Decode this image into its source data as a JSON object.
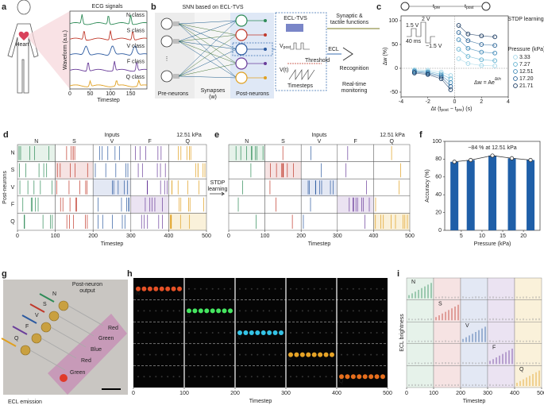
{
  "panels": {
    "a": {
      "label": "a",
      "title": "ECG signals",
      "organ": "Heart",
      "classes": [
        "N class",
        "S class",
        "V class",
        "F class",
        "Q class"
      ],
      "colors": [
        "#2e8b57",
        "#c0392b",
        "#2c5aa0",
        "#6a3d9a",
        "#e0a020"
      ],
      "ylabel": "Waveform (a.u.)",
      "xlabel": "Timestep",
      "xticks": [
        0,
        50,
        100,
        150
      ],
      "xlim": [
        0,
        190
      ]
    },
    "b": {
      "label": "b",
      "title": "SNN based on ECL-TVS",
      "pre": "Pre-neurons",
      "synapses": [
        "Synapses",
        "(w)"
      ],
      "post": "Post-neurons",
      "device": "ECL-TVS",
      "vpost": "V",
      "vpost_sub": "post",
      "vt": "V(t)",
      "threshold": "Threshold",
      "timesteps": "Timesteps",
      "ecl": "ECL",
      "recognition": "Recognition",
      "monitoring": [
        "Real-time",
        "monitoring"
      ],
      "functions": [
        "Synaptic &",
        "tactile functions"
      ]
    },
    "d": {
      "label": "d",
      "title": "Inputs",
      "pressure": "12.51 kPa",
      "columns": [
        "N",
        "S",
        "V",
        "F",
        "Q"
      ],
      "rows": [
        "N",
        "S",
        "V",
        "F",
        "Q"
      ],
      "ylabel": "Post-neurons",
      "xlabel": "Timestep",
      "xticks": [
        0,
        100,
        200,
        300,
        400,
        500
      ],
      "xlim": [
        0,
        500
      ]
    },
    "arrow": [
      "STDP",
      "learning"
    ],
    "e": {
      "label": "e",
      "title": "Inputs",
      "pressure": "12.51 kPa",
      "columns": [
        "N",
        "S",
        "V",
        "F",
        "Q"
      ],
      "xlabel": "Timestep",
      "xticks": [
        0,
        100,
        200,
        300,
        400,
        500
      ],
      "xlim": [
        0,
        500
      ]
    },
    "g": {
      "label": "g",
      "output": [
        "Post-neuron",
        "output"
      ],
      "classes": [
        "N",
        "S",
        "V",
        "F",
        "Q"
      ],
      "spots": [
        "Red",
        "Green",
        "Blue",
        "Red",
        "Green"
      ],
      "caption": "ECL emission"
    },
    "h": {
      "label": "h",
      "classes": [
        "N",
        "S",
        "V",
        "F",
        "Q"
      ],
      "xlabel": "Timestep",
      "xticks": [
        0,
        100,
        200,
        300,
        400,
        500
      ],
      "xlim": [
        0,
        500
      ]
    },
    "i": {
      "label": "i",
      "classes": [
        "N",
        "S",
        "V",
        "F",
        "Q"
      ],
      "ylabel": "ECL brightness",
      "xlabel": "Timestep",
      "xticks": [
        0,
        100,
        200,
        300,
        400,
        500
      ],
      "xlim": [
        0,
        500
      ]
    }
  },
  "chart_data": [
    {
      "type": "scatter",
      "label": "c",
      "xlabel": "Δt (t",
      "xlabel_sub": [
        "post",
        "pre"
      ],
      "xlabel_mid": " − t",
      "xlabel_end": ") (s)",
      "ylabel": "Δw (%)",
      "legend_title": "Pressure (kPa)",
      "note": "STDP learning",
      "inset": [
        "1.5 V",
        "2 V",
        "40 ms",
        "−1.5 V"
      ],
      "formula": "Δw = Ae",
      "formula_exp": "Δt/τ",
      "top": [
        "t",
        "pre",
        "t",
        "post"
      ],
      "xlim": [
        -4,
        4
      ],
      "ylim": [
        -60,
        110
      ],
      "xticks": [
        -4,
        -2,
        0,
        2,
        4
      ],
      "yticks": [
        -50,
        0,
        50,
        100
      ],
      "x": [
        -3,
        -2,
        -1,
        -0.3,
        0.3,
        1,
        2,
        3
      ],
      "series": [
        {
          "name": "3.33",
          "color": "#9fd4e6",
          "values": [
            -3,
            -4,
            -8,
            -15,
            20,
            10,
            6,
            5
          ]
        },
        {
          "name": "7.27",
          "color": "#5fb0cf",
          "values": [
            -5,
            -7,
            -12,
            -22,
            40,
            25,
            18,
            16
          ]
        },
        {
          "name": "12.51",
          "color": "#3a86b5",
          "values": [
            -6,
            -9,
            -15,
            -30,
            60,
            42,
            34,
            32
          ]
        },
        {
          "name": "17.20",
          "color": "#235f94",
          "values": [
            -8,
            -11,
            -18,
            -38,
            75,
            58,
            50,
            48
          ]
        },
        {
          "name": "21.71",
          "color": "#13345c",
          "values": [
            -10,
            -13,
            -22,
            -45,
            90,
            72,
            68,
            66
          ]
        }
      ]
    },
    {
      "type": "bar",
      "label": "f",
      "xlabel": "Pressure (kPa)",
      "ylabel": "Accuracy (%)",
      "annotation": "~84 % at 12.51 kPa",
      "color": "#1f5fa8",
      "x": [
        3.33,
        7.27,
        12.51,
        17.2,
        21.71
      ],
      "values": [
        77,
        79,
        84,
        81,
        79
      ],
      "xlim": [
        1,
        24
      ],
      "ylim": [
        0,
        100
      ],
      "xticks": [
        5,
        10,
        15,
        20
      ],
      "yticks": [
        0,
        20,
        40,
        60,
        80,
        100
      ]
    }
  ]
}
